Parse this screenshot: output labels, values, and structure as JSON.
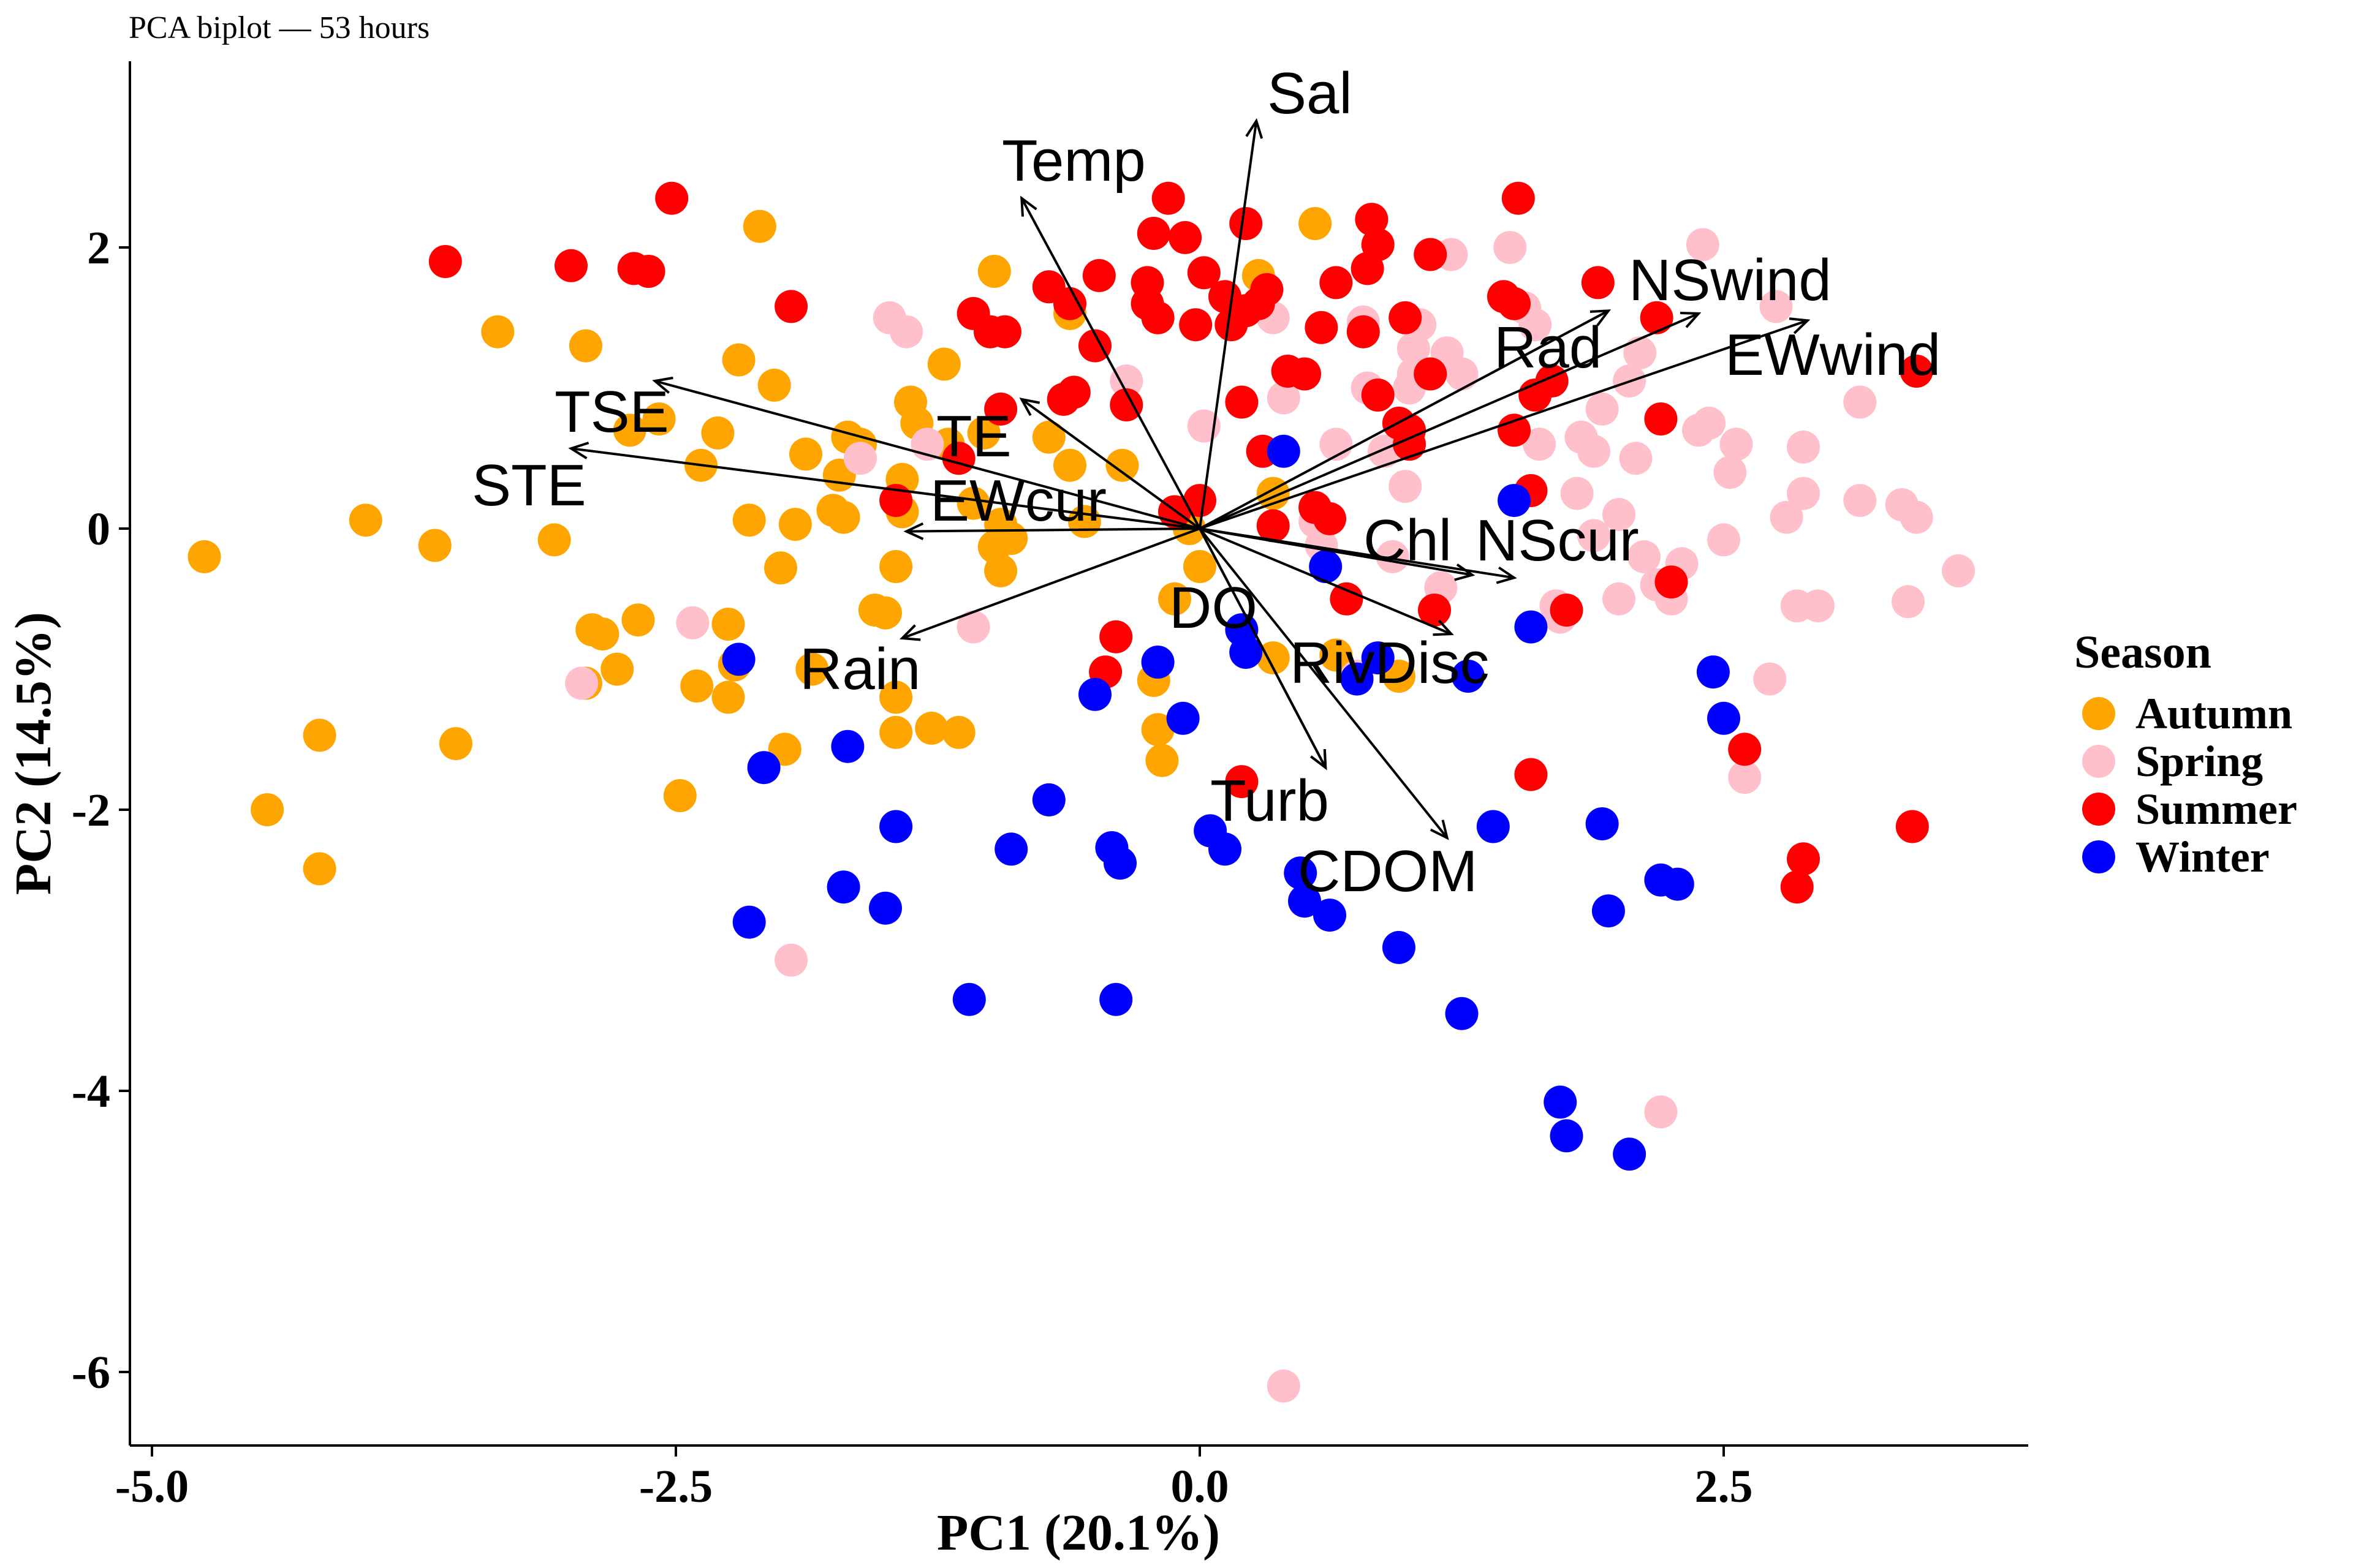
{
  "chart_data": {
    "type": "scatter",
    "title": "PCA biplot — 53 hours",
    "xlabel": "PC1 (20.1%)",
    "ylabel": "PC2 (14.5%)",
    "xlim": [
      -5.2,
      4.0
    ],
    "ylim": [
      -6.5,
      3.35
    ],
    "x_ticks": [
      -5.0,
      -2.5,
      0.0,
      2.5
    ],
    "x_tick_labels": [
      "-5.0",
      "-2.5",
      "0.0",
      "2.5"
    ],
    "y_ticks": [
      -6,
      -4,
      -2,
      0,
      2
    ],
    "y_tick_labels": [
      "-6",
      "-4",
      "-2",
      "0",
      "2"
    ],
    "grid": false,
    "legend": {
      "title": "Season",
      "position": "right",
      "entries": [
        "Autumn",
        "Spring",
        "Summer",
        "Winter"
      ]
    },
    "colors": {
      "Autumn": "#FFA500",
      "Spring": "#FFC0CB",
      "Summer": "#FF0000",
      "Winter": "#0000FF",
      "arrow": "#000000"
    },
    "series": [
      {
        "name": "Autumn",
        "points": [
          [
            -4.75,
            -0.2
          ],
          [
            -4.45,
            -2.0
          ],
          [
            -4.2,
            -1.47
          ],
          [
            -4.2,
            -2.42
          ],
          [
            -3.98,
            0.06
          ],
          [
            -3.65,
            -0.12
          ],
          [
            -3.55,
            -1.53
          ],
          [
            -3.35,
            1.4
          ],
          [
            -3.08,
            -0.08
          ],
          [
            -2.93,
            1.3
          ],
          [
            -2.9,
            -0.72
          ],
          [
            -2.93,
            -1.1
          ],
          [
            -2.85,
            -0.75
          ],
          [
            -2.78,
            -1.0
          ],
          [
            -2.68,
            -0.65
          ],
          [
            -2.72,
            0.7
          ],
          [
            -2.58,
            0.78
          ],
          [
            -2.48,
            -1.9
          ],
          [
            -2.4,
            -1.12
          ],
          [
            -2.38,
            0.45
          ],
          [
            -2.3,
            0.68
          ],
          [
            -2.25,
            -1.2
          ],
          [
            -2.25,
            -0.68
          ],
          [
            -2.22,
            -0.97
          ],
          [
            -2.2,
            1.2
          ],
          [
            -2.15,
            0.06
          ],
          [
            -2.1,
            2.15
          ],
          [
            -2.03,
            1.02
          ],
          [
            -2.0,
            -0.28
          ],
          [
            -1.98,
            -1.57
          ],
          [
            -1.93,
            0.03
          ],
          [
            -1.88,
            0.53
          ],
          [
            -1.85,
            -1.0
          ],
          [
            -1.75,
            0.13
          ],
          [
            -1.72,
            0.38
          ],
          [
            -1.7,
            0.08
          ],
          [
            -1.68,
            0.65
          ],
          [
            -1.62,
            0.6
          ],
          [
            -1.55,
            -0.58
          ],
          [
            -1.5,
            -0.6
          ],
          [
            -1.45,
            -1.2
          ],
          [
            -1.45,
            -1.45
          ],
          [
            -1.45,
            -0.27
          ],
          [
            -1.42,
            0.35
          ],
          [
            -1.42,
            0.12
          ],
          [
            -1.38,
            0.9
          ],
          [
            -1.35,
            0.75
          ],
          [
            -1.28,
            -1.42
          ],
          [
            -1.22,
            1.17
          ],
          [
            -1.2,
            0.6
          ],
          [
            -1.15,
            -1.45
          ],
          [
            -1.08,
            0.18
          ],
          [
            -1.03,
            0.68
          ],
          [
            -0.98,
            -0.13
          ],
          [
            -0.95,
            0.03
          ],
          [
            -0.98,
            1.83
          ],
          [
            -0.95,
            -0.3
          ],
          [
            -0.9,
            -0.07
          ],
          [
            -0.72,
            0.65
          ],
          [
            -0.62,
            0.45
          ],
          [
            -0.62,
            1.53
          ],
          [
            -0.55,
            0.05
          ],
          [
            -0.37,
            0.45
          ],
          [
            -0.22,
            -1.08
          ],
          [
            -0.2,
            -1.43
          ],
          [
            -0.18,
            -1.65
          ],
          [
            -0.12,
            -0.5
          ],
          [
            -0.05,
            0.0
          ],
          [
            0.0,
            -0.27
          ],
          [
            0.28,
            1.8
          ],
          [
            0.35,
            0.25
          ],
          [
            0.35,
            -0.92
          ],
          [
            0.55,
            2.17
          ],
          [
            0.65,
            -0.9
          ],
          [
            0.95,
            -1.05
          ]
        ]
      },
      {
        "name": "Spring",
        "points": [
          [
            -2.95,
            -1.1
          ],
          [
            -2.42,
            -0.67
          ],
          [
            -1.95,
            -3.07
          ],
          [
            -1.62,
            0.5
          ],
          [
            -1.48,
            1.5
          ],
          [
            -1.4,
            1.4
          ],
          [
            -1.3,
            0.6
          ],
          [
            -1.08,
            -0.7
          ],
          [
            -0.35,
            1.05
          ],
          [
            0.02,
            0.73
          ],
          [
            0.35,
            1.5
          ],
          [
            0.4,
            0.93
          ],
          [
            0.4,
            -6.1
          ],
          [
            0.55,
            0.05
          ],
          [
            0.58,
            -0.12
          ],
          [
            0.65,
            0.6
          ],
          [
            0.75,
            -1.05
          ],
          [
            0.78,
            1.47
          ],
          [
            0.8,
            1.0
          ],
          [
            0.88,
            0.55
          ],
          [
            0.92,
            -0.2
          ],
          [
            0.98,
            0.3
          ],
          [
            1.0,
            1.0
          ],
          [
            1.02,
            1.1
          ],
          [
            1.05,
            1.45
          ],
          [
            1.15,
            -0.42
          ],
          [
            1.18,
            1.25
          ],
          [
            1.2,
            1.95
          ],
          [
            1.25,
            1.1
          ],
          [
            1.48,
            2.0
          ],
          [
            1.55,
            1.57
          ],
          [
            1.6,
            1.45
          ],
          [
            1.62,
            0.6
          ],
          [
            1.7,
            -0.55
          ],
          [
            1.72,
            -0.63
          ],
          [
            1.8,
            0.25
          ],
          [
            1.82,
            0.65
          ],
          [
            1.88,
            -0.05
          ],
          [
            1.88,
            0.55
          ],
          [
            1.92,
            0.85
          ],
          [
            2.0,
            0.1
          ],
          [
            2.0,
            -0.5
          ],
          [
            2.05,
            1.05
          ],
          [
            2.08,
            0.5
          ],
          [
            2.1,
            1.25
          ],
          [
            2.12,
            -0.2
          ],
          [
            2.18,
            -0.4
          ],
          [
            2.25,
            -0.5
          ],
          [
            2.3,
            -0.25
          ],
          [
            2.2,
            -4.15
          ],
          [
            2.38,
            0.7
          ],
          [
            2.43,
            0.75
          ],
          [
            2.4,
            2.02
          ],
          [
            2.5,
            -0.08
          ],
          [
            2.53,
            0.4
          ],
          [
            2.56,
            0.6
          ],
          [
            2.6,
            -1.77
          ],
          [
            2.72,
            -1.07
          ],
          [
            2.8,
            0.08
          ],
          [
            2.85,
            -0.55
          ],
          [
            2.88,
            0.25
          ],
          [
            2.88,
            0.58
          ],
          [
            2.95,
            -0.55
          ],
          [
            3.15,
            0.9
          ],
          [
            3.15,
            0.2
          ],
          [
            3.35,
            0.17
          ],
          [
            3.42,
            0.08
          ],
          [
            3.38,
            -0.52
          ],
          [
            3.62,
            -0.3
          ],
          [
            2.75,
            1.58
          ],
          [
            1.02,
            1.28
          ]
        ]
      },
      {
        "name": "Summer",
        "points": [
          [
            -3.6,
            1.9
          ],
          [
            -3.0,
            1.87
          ],
          [
            -2.7,
            1.85
          ],
          [
            -2.63,
            1.83
          ],
          [
            -2.52,
            2.35
          ],
          [
            -1.95,
            1.58
          ],
          [
            -1.45,
            0.2
          ],
          [
            -1.08,
            1.53
          ],
          [
            -1.0,
            1.4
          ],
          [
            -0.93,
            1.4
          ],
          [
            -1.15,
            0.5
          ],
          [
            -0.95,
            0.85
          ],
          [
            -0.65,
            0.92
          ],
          [
            -0.72,
            1.72
          ],
          [
            -0.62,
            1.6
          ],
          [
            -0.6,
            0.97
          ],
          [
            -0.5,
            1.3
          ],
          [
            -0.48,
            1.8
          ],
          [
            -0.4,
            -0.77
          ],
          [
            -0.45,
            -1.02
          ],
          [
            -0.25,
            1.75
          ],
          [
            -0.25,
            1.6
          ],
          [
            -0.2,
            1.5
          ],
          [
            -0.22,
            2.1
          ],
          [
            -0.15,
            2.35
          ],
          [
            -0.07,
            2.07
          ],
          [
            -0.02,
            1.45
          ],
          [
            0.0,
            0.2
          ],
          [
            0.02,
            1.82
          ],
          [
            0.12,
            1.65
          ],
          [
            0.15,
            1.45
          ],
          [
            0.2,
            0.9
          ],
          [
            0.22,
            1.55
          ],
          [
            0.22,
            2.17
          ],
          [
            0.28,
            1.6
          ],
          [
            0.32,
            1.7
          ],
          [
            0.3,
            0.55
          ],
          [
            0.35,
            0.02
          ],
          [
            0.42,
            1.12
          ],
          [
            0.5,
            1.1
          ],
          [
            0.55,
            0.15
          ],
          [
            0.58,
            1.43
          ],
          [
            0.62,
            0.07
          ],
          [
            0.65,
            1.75
          ],
          [
            0.7,
            -0.5
          ],
          [
            0.78,
            1.4
          ],
          [
            0.8,
            1.85
          ],
          [
            0.82,
            2.2
          ],
          [
            0.85,
            2.02
          ],
          [
            0.85,
            0.95
          ],
          [
            0.95,
            0.75
          ],
          [
            0.98,
            1.5
          ],
          [
            1.0,
            0.7
          ],
          [
            1.1,
            1.95
          ],
          [
            1.12,
            -0.58
          ],
          [
            1.45,
            1.65
          ],
          [
            1.5,
            1.6
          ],
          [
            1.52,
            2.35
          ],
          [
            1.5,
            0.7
          ],
          [
            1.58,
            0.27
          ],
          [
            1.6,
            0.95
          ],
          [
            1.58,
            -1.75
          ],
          [
            1.68,
            1.05
          ],
          [
            1.75,
            -0.58
          ],
          [
            1.9,
            1.75
          ],
          [
            2.18,
            1.5
          ],
          [
            2.2,
            0.78
          ],
          [
            2.25,
            -0.38
          ],
          [
            2.6,
            -1.57
          ],
          [
            2.88,
            -2.35
          ],
          [
            2.85,
            -2.55
          ],
          [
            3.4,
            -2.12
          ],
          [
            3.42,
            1.12
          ],
          [
            0.2,
            -1.8
          ],
          [
            -0.12,
            0.12
          ],
          [
            -0.35,
            0.88
          ],
          [
            1.0,
            0.6
          ],
          [
            1.1,
            1.1
          ]
        ]
      },
      {
        "name": "Winter",
        "points": [
          [
            -2.2,
            -0.93
          ],
          [
            -2.08,
            -1.7
          ],
          [
            -2.15,
            -2.8
          ],
          [
            -1.7,
            -2.55
          ],
          [
            -1.68,
            -1.55
          ],
          [
            -1.5,
            -2.7
          ],
          [
            -1.45,
            -2.12
          ],
          [
            -1.1,
            -3.35
          ],
          [
            -0.9,
            -2.28
          ],
          [
            -0.72,
            -1.93
          ],
          [
            -0.5,
            -1.18
          ],
          [
            -0.42,
            -2.27
          ],
          [
            -0.38,
            -2.38
          ],
          [
            -0.4,
            -3.35
          ],
          [
            -0.2,
            -0.95
          ],
          [
            -0.08,
            -1.35
          ],
          [
            0.05,
            -2.15
          ],
          [
            0.12,
            -2.28
          ],
          [
            0.2,
            -0.72
          ],
          [
            0.22,
            -0.88
          ],
          [
            0.4,
            0.55
          ],
          [
            0.48,
            -2.45
          ],
          [
            0.5,
            -2.65
          ],
          [
            0.6,
            -0.27
          ],
          [
            0.62,
            -2.75
          ],
          [
            0.75,
            -1.07
          ],
          [
            0.85,
            -0.92
          ],
          [
            0.95,
            -2.98
          ],
          [
            1.25,
            -3.45
          ],
          [
            1.28,
            -1.05
          ],
          [
            1.4,
            -2.12
          ],
          [
            1.5,
            0.2
          ],
          [
            1.58,
            -0.7
          ],
          [
            1.72,
            -4.08
          ],
          [
            1.75,
            -4.32
          ],
          [
            1.92,
            -2.1
          ],
          [
            1.95,
            -2.72
          ],
          [
            2.05,
            -4.45
          ],
          [
            2.2,
            -2.5
          ],
          [
            2.28,
            -2.53
          ],
          [
            2.45,
            -1.02
          ],
          [
            2.5,
            -1.35
          ]
        ]
      }
    ],
    "loadings": [
      {
        "name": "Sal",
        "x": 0.27,
        "y": 2.9
      },
      {
        "name": "Temp",
        "x": -0.85,
        "y": 2.35
      },
      {
        "name": "NSwind",
        "x": 2.38,
        "y": 1.53
      },
      {
        "name": "Rad",
        "x": 1.95,
        "y": 1.55
      },
      {
        "name": "EWwind",
        "x": 2.9,
        "y": 1.48
      },
      {
        "name": "TSE",
        "x": -2.6,
        "y": 1.05
      },
      {
        "name": "STE",
        "x": -3.0,
        "y": 0.57
      },
      {
        "name": "TE",
        "x": -0.85,
        "y": 0.92
      },
      {
        "name": "EWcur",
        "x": -1.4,
        "y": -0.02
      },
      {
        "name": "Chl",
        "x": 1.3,
        "y": -0.33
      },
      {
        "name": "NScur",
        "x": 1.5,
        "y": -0.35
      },
      {
        "name": "DO",
        "x": 1.2,
        "y": -0.75
      },
      {
        "name": "Rain",
        "x": -1.42,
        "y": -0.78
      },
      {
        "name": "RivDisc",
        "x": 0.6,
        "y": -1.7
      },
      {
        "name": "Turb",
        "x": 0.6,
        "y": -1.7
      },
      {
        "name": "CDOM",
        "x": 1.18,
        "y": -2.2
      }
    ]
  }
}
